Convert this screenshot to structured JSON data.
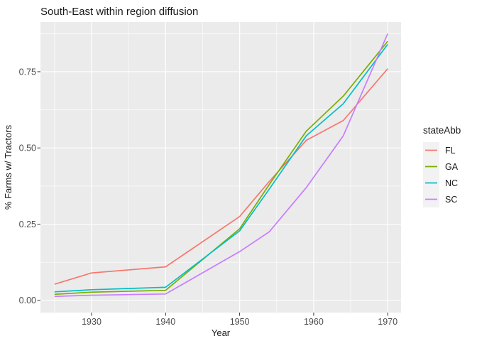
{
  "chart_data": {
    "type": "line",
    "title": "South-East within region diffusion",
    "xlabel": "Year",
    "ylabel": "% Farms w/ Tractors",
    "legend_title": "stateAbb",
    "legend_position": "right",
    "grid": "major+minor",
    "background": {
      "panel": "#EBEBEB",
      "grid": "#FFFFFF",
      "outer": "#FFFFFF",
      "legend_key": "#F2F2F2",
      "tick_mark": "#333333"
    },
    "x": [
      1925,
      1930,
      1940,
      1950,
      1954,
      1959,
      1964,
      1970
    ],
    "series": [
      {
        "name": "FL",
        "color": "#F8766D",
        "values": [
          0.053,
          0.09,
          0.11,
          0.275,
          0.39,
          0.525,
          0.59,
          0.76
        ]
      },
      {
        "name": "GA",
        "color": "#7CAE00",
        "values": [
          0.02,
          0.027,
          0.033,
          0.235,
          0.38,
          0.555,
          0.67,
          0.85
        ]
      },
      {
        "name": "NC",
        "color": "#00BFC4",
        "values": [
          0.028,
          0.035,
          0.043,
          0.228,
          0.365,
          0.54,
          0.645,
          0.84
        ]
      },
      {
        "name": "SC",
        "color": "#C77CFF",
        "values": [
          0.013,
          0.017,
          0.021,
          0.16,
          0.225,
          0.37,
          0.54,
          0.875
        ]
      }
    ],
    "xtick_values": [
      1930,
      1940,
      1950,
      1960,
      1970
    ],
    "xtick_labels": [
      "1930",
      "1940",
      "1950",
      "1960",
      "1970"
    ],
    "ytick_values": [
      0,
      0.25,
      0.5,
      0.75
    ],
    "yticks": [
      "0.00",
      "0.25",
      "0.50",
      "0.75"
    ],
    "xlim": [
      1923.1,
      1971.8
    ],
    "ylim": [
      -0.04,
      0.913
    ]
  }
}
